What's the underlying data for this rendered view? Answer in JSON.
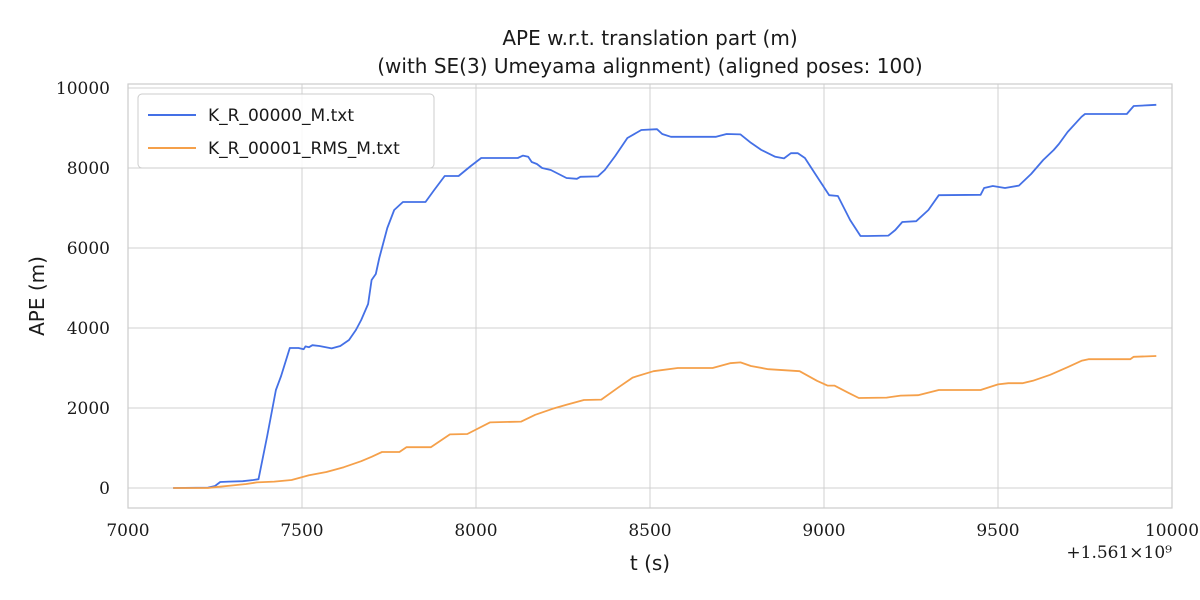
{
  "chart_data": {
    "type": "line",
    "title": "APE w.r.t. translation part (m)",
    "subtitle": "(with SE(3) Umeyama alignment) (aligned poses: 100)",
    "xlabel": "t (s)",
    "ylabel": "APE (m)",
    "x_offset_label": "+1.561×10⁹",
    "xlim": [
      7000,
      10000
    ],
    "ylim": [
      -500,
      10100
    ],
    "x_ticks": [
      7000,
      7500,
      8000,
      8500,
      9000,
      9500,
      10000
    ],
    "y_ticks": [
      0,
      2000,
      4000,
      6000,
      8000,
      10000
    ],
    "x_tick_labels": [
      "7000",
      "7500",
      "8000",
      "8500",
      "9000",
      "9500",
      "10000"
    ],
    "y_tick_labels": [
      "0",
      "2000",
      "4000",
      "6000",
      "8000",
      "10000"
    ],
    "grid": true,
    "legend_position": "top-left",
    "series": [
      {
        "name": "K_R_00000_M.txt",
        "color": "#4470e6",
        "points": [
          [
            7130,
            0
          ],
          [
            7230,
            10
          ],
          [
            7250,
            50
          ],
          [
            7265,
            150
          ],
          [
            7290,
            160
          ],
          [
            7330,
            170
          ],
          [
            7360,
            200
          ],
          [
            7375,
            220
          ],
          [
            7400,
            1300
          ],
          [
            7425,
            2450
          ],
          [
            7440,
            2800
          ],
          [
            7465,
            3500
          ],
          [
            7490,
            3500
          ],
          [
            7505,
            3470
          ],
          [
            7510,
            3540
          ],
          [
            7520,
            3520
          ],
          [
            7530,
            3570
          ],
          [
            7550,
            3550
          ],
          [
            7585,
            3490
          ],
          [
            7610,
            3550
          ],
          [
            7635,
            3700
          ],
          [
            7655,
            3950
          ],
          [
            7670,
            4200
          ],
          [
            7690,
            4600
          ],
          [
            7700,
            5200
          ],
          [
            7712,
            5350
          ],
          [
            7722,
            5750
          ],
          [
            7745,
            6500
          ],
          [
            7765,
            6950
          ],
          [
            7790,
            7150
          ],
          [
            7855,
            7150
          ],
          [
            7880,
            7450
          ],
          [
            7910,
            7800
          ],
          [
            7950,
            7800
          ],
          [
            7985,
            8050
          ],
          [
            8015,
            8250
          ],
          [
            8120,
            8250
          ],
          [
            8135,
            8310
          ],
          [
            8150,
            8280
          ],
          [
            8160,
            8150
          ],
          [
            8175,
            8100
          ],
          [
            8190,
            8000
          ],
          [
            8215,
            7950
          ],
          [
            8260,
            7750
          ],
          [
            8290,
            7730
          ],
          [
            8300,
            7780
          ],
          [
            8350,
            7790
          ],
          [
            8370,
            7950
          ],
          [
            8400,
            8300
          ],
          [
            8435,
            8750
          ],
          [
            8475,
            8950
          ],
          [
            8520,
            8970
          ],
          [
            8535,
            8850
          ],
          [
            8560,
            8780
          ],
          [
            8690,
            8780
          ],
          [
            8720,
            8850
          ],
          [
            8760,
            8840
          ],
          [
            8790,
            8630
          ],
          [
            8820,
            8450
          ],
          [
            8860,
            8280
          ],
          [
            8885,
            8240
          ],
          [
            8905,
            8370
          ],
          [
            8925,
            8370
          ],
          [
            8945,
            8250
          ],
          [
            8975,
            7850
          ],
          [
            9015,
            7320
          ],
          [
            9040,
            7300
          ],
          [
            9075,
            6700
          ],
          [
            9105,
            6300
          ],
          [
            9125,
            6300
          ],
          [
            9185,
            6310
          ],
          [
            9205,
            6450
          ],
          [
            9225,
            6650
          ],
          [
            9265,
            6670
          ],
          [
            9300,
            6950
          ],
          [
            9330,
            7320
          ],
          [
            9450,
            7330
          ],
          [
            9460,
            7500
          ],
          [
            9485,
            7550
          ],
          [
            9520,
            7500
          ],
          [
            9560,
            7560
          ],
          [
            9595,
            7850
          ],
          [
            9630,
            8200
          ],
          [
            9660,
            8450
          ],
          [
            9675,
            8600
          ],
          [
            9700,
            8900
          ],
          [
            9740,
            9280
          ],
          [
            9750,
            9350
          ],
          [
            9870,
            9350
          ],
          [
            9890,
            9550
          ],
          [
            9935,
            9570
          ],
          [
            9955,
            9580
          ]
        ]
      },
      {
        "name": "K_R_00001_RMS_M.txt",
        "color": "#f5a04a",
        "points": [
          [
            7130,
            0
          ],
          [
            7230,
            0
          ],
          [
            7260,
            30
          ],
          [
            7295,
            60
          ],
          [
            7340,
            100
          ],
          [
            7370,
            140
          ],
          [
            7420,
            160
          ],
          [
            7470,
            200
          ],
          [
            7520,
            320
          ],
          [
            7570,
            400
          ],
          [
            7620,
            520
          ],
          [
            7670,
            670
          ],
          [
            7700,
            780
          ],
          [
            7730,
            900
          ],
          [
            7780,
            900
          ],
          [
            7800,
            1020
          ],
          [
            7870,
            1020
          ],
          [
            7925,
            1340
          ],
          [
            7975,
            1350
          ],
          [
            8040,
            1640
          ],
          [
            8130,
            1660
          ],
          [
            8170,
            1830
          ],
          [
            8220,
            1980
          ],
          [
            8260,
            2080
          ],
          [
            8310,
            2200
          ],
          [
            8360,
            2210
          ],
          [
            8410,
            2520
          ],
          [
            8450,
            2760
          ],
          [
            8510,
            2920
          ],
          [
            8580,
            3000
          ],
          [
            8680,
            3000
          ],
          [
            8730,
            3120
          ],
          [
            8760,
            3140
          ],
          [
            8790,
            3050
          ],
          [
            8840,
            2970
          ],
          [
            8930,
            2920
          ],
          [
            8980,
            2680
          ],
          [
            9010,
            2560
          ],
          [
            9030,
            2560
          ],
          [
            9070,
            2380
          ],
          [
            9100,
            2250
          ],
          [
            9180,
            2260
          ],
          [
            9220,
            2310
          ],
          [
            9270,
            2320
          ],
          [
            9330,
            2450
          ],
          [
            9450,
            2450
          ],
          [
            9500,
            2590
          ],
          [
            9530,
            2620
          ],
          [
            9570,
            2620
          ],
          [
            9600,
            2680
          ],
          [
            9650,
            2830
          ],
          [
            9700,
            3020
          ],
          [
            9740,
            3180
          ],
          [
            9760,
            3220
          ],
          [
            9880,
            3220
          ],
          [
            9890,
            3280
          ],
          [
            9955,
            3300
          ]
        ]
      }
    ]
  }
}
